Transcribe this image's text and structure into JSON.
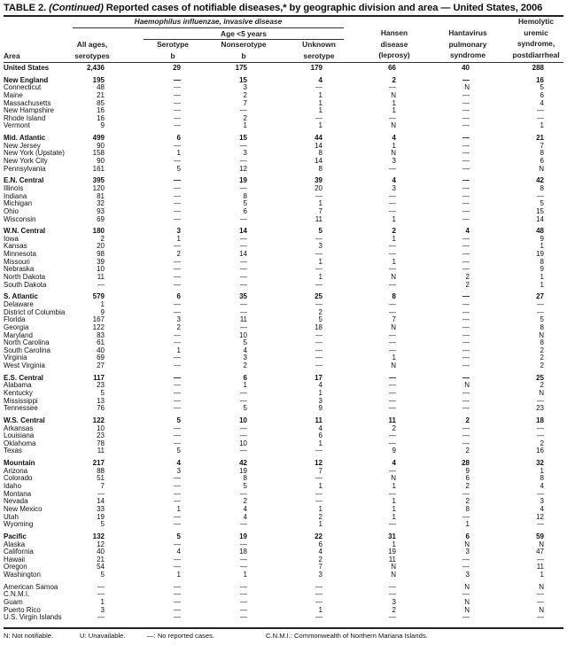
{
  "title": {
    "prefix": "TABLE 2. ",
    "continued": "(Continued)",
    "text": " Reported cases of notifiable diseases,* by geographic division and area — United States, 2006"
  },
  "header": {
    "hi_group": "Haemophilus influenzae, invasive disease",
    "age_group": "Age <5 years",
    "area": "Area",
    "all_ages": [
      "All ages,",
      "serotypes"
    ],
    "serotype_b": [
      "Serotype",
      "b"
    ],
    "nonserotype_b": [
      "Nonserotype",
      "b"
    ],
    "unknown": [
      "Unknown",
      "serotype"
    ],
    "hansen": [
      "Hansen",
      "disease",
      "(leprosy)"
    ],
    "hantavirus": [
      "Hantavirus",
      "pulmonary",
      "syndrome"
    ],
    "hus": [
      "Hemolytic",
      "uremic",
      "syndrome,",
      "postdiarrheal"
    ]
  },
  "rows": [
    {
      "group": true,
      "cells": [
        "United States",
        "2,436",
        "29",
        "175",
        "179",
        "66",
        "40",
        "288"
      ]
    },
    {
      "group": true,
      "cells": [
        "New England",
        "195",
        "—",
        "15",
        "4",
        "2",
        "—",
        "16"
      ]
    },
    {
      "cells": [
        "Connecticut",
        "48",
        "—",
        "3",
        "—",
        "—",
        "N",
        "5"
      ]
    },
    {
      "cells": [
        "Maine",
        "21",
        "—",
        "2",
        "1",
        "N",
        "—",
        "6"
      ]
    },
    {
      "cells": [
        "Massachusetts",
        "85",
        "—",
        "7",
        "1",
        "1",
        "—",
        "4"
      ]
    },
    {
      "cells": [
        "New Hampshire",
        "16",
        "—",
        "—",
        "1",
        "1",
        "—",
        "—"
      ]
    },
    {
      "cells": [
        "Rhode Island",
        "16",
        "—",
        "2",
        "—",
        "—",
        "—",
        "—"
      ]
    },
    {
      "cells": [
        "Vermont",
        "9",
        "—",
        "1",
        "1",
        "N",
        "—",
        "1"
      ]
    },
    {
      "group": true,
      "cells": [
        "Mid. Atlantic",
        "499",
        "6",
        "15",
        "44",
        "4",
        "—",
        "21"
      ]
    },
    {
      "cells": [
        "New Jersey",
        "90",
        "—",
        "—",
        "14",
        "1",
        "—",
        "7"
      ]
    },
    {
      "cells": [
        "New York (Upstate)",
        "158",
        "1",
        "3",
        "8",
        "N",
        "—",
        "8"
      ]
    },
    {
      "cells": [
        "New York City",
        "90",
        "—",
        "—",
        "14",
        "3",
        "—",
        "6"
      ]
    },
    {
      "cells": [
        "Pennsylvania",
        "161",
        "5",
        "12",
        "8",
        "—",
        "—",
        "N"
      ]
    },
    {
      "group": true,
      "cells": [
        "E.N. Central",
        "395",
        "—",
        "19",
        "39",
        "4",
        "—",
        "42"
      ]
    },
    {
      "cells": [
        "Illinois",
        "120",
        "—",
        "—",
        "20",
        "3",
        "—",
        "8"
      ]
    },
    {
      "cells": [
        "Indiana",
        "81",
        "—",
        "8",
        "—",
        "—",
        "—",
        "—"
      ]
    },
    {
      "cells": [
        "Michigan",
        "32",
        "—",
        "5",
        "1",
        "—",
        "—",
        "5"
      ]
    },
    {
      "cells": [
        "Ohio",
        "93",
        "—",
        "6",
        "7",
        "—",
        "—",
        "15"
      ]
    },
    {
      "cells": [
        "Wisconsin",
        "69",
        "—",
        "—",
        "11",
        "1",
        "—",
        "14"
      ]
    },
    {
      "group": true,
      "cells": [
        "W.N. Central",
        "180",
        "3",
        "14",
        "5",
        "2",
        "4",
        "48"
      ]
    },
    {
      "cells": [
        "Iowa",
        "2",
        "1",
        "—",
        "—",
        "1",
        "—",
        "9"
      ]
    },
    {
      "cells": [
        "Kansas",
        "20",
        "—",
        "—",
        "3",
        "—",
        "—",
        "1"
      ]
    },
    {
      "cells": [
        "Minnesota",
        "98",
        "2",
        "14",
        "—",
        "—",
        "—",
        "19"
      ]
    },
    {
      "cells": [
        "Missouri",
        "39",
        "—",
        "—",
        "1",
        "1",
        "—",
        "8"
      ]
    },
    {
      "cells": [
        "Nebraska",
        "10",
        "—",
        "—",
        "—",
        "—",
        "—",
        "9"
      ]
    },
    {
      "cells": [
        "North Dakota",
        "11",
        "—",
        "—",
        "1",
        "N",
        "2",
        "1"
      ]
    },
    {
      "cells": [
        "South Dakota",
        "—",
        "—",
        "—",
        "—",
        "—",
        "2",
        "1"
      ]
    },
    {
      "group": true,
      "cells": [
        "S. Atlantic",
        "579",
        "6",
        "35",
        "25",
        "8",
        "—",
        "27"
      ]
    },
    {
      "cells": [
        "Delaware",
        "1",
        "—",
        "—",
        "—",
        "—",
        "—",
        "—"
      ]
    },
    {
      "cells": [
        "District of Columbia",
        "9",
        "—",
        "—",
        "2",
        "—",
        "—",
        "—"
      ]
    },
    {
      "cells": [
        "Florida",
        "167",
        "3",
        "11",
        "5",
        "7",
        "—",
        "5"
      ]
    },
    {
      "cells": [
        "Georgia",
        "122",
        "2",
        "—",
        "18",
        "N",
        "—",
        "8"
      ]
    },
    {
      "cells": [
        "Maryland",
        "83",
        "—",
        "10",
        "—",
        "—",
        "—",
        "N"
      ]
    },
    {
      "cells": [
        "North Carolina",
        "61",
        "—",
        "5",
        "—",
        "—",
        "—",
        "8"
      ]
    },
    {
      "cells": [
        "South Carolina",
        "40",
        "1",
        "4",
        "—",
        "—",
        "—",
        "2"
      ]
    },
    {
      "cells": [
        "Virginia",
        "69",
        "—",
        "3",
        "—",
        "1",
        "—",
        "2"
      ]
    },
    {
      "cells": [
        "West Virginia",
        "27",
        "—",
        "2",
        "—",
        "N",
        "—",
        "2"
      ]
    },
    {
      "group": true,
      "cells": [
        "E.S. Central",
        "117",
        "—",
        "6",
        "17",
        "—",
        "—",
        "25"
      ]
    },
    {
      "cells": [
        "Alabama",
        "23",
        "—",
        "1",
        "4",
        "—",
        "N",
        "2"
      ]
    },
    {
      "cells": [
        "Kentucky",
        "5",
        "—",
        "—",
        "1",
        "—",
        "—",
        "N"
      ]
    },
    {
      "cells": [
        "Mississippi",
        "13",
        "—",
        "—",
        "3",
        "—",
        "—",
        "—"
      ]
    },
    {
      "cells": [
        "Tennessee",
        "76",
        "—",
        "5",
        "9",
        "—",
        "—",
        "23"
      ]
    },
    {
      "group": true,
      "cells": [
        "W.S. Central",
        "122",
        "5",
        "10",
        "11",
        "11",
        "2",
        "18"
      ]
    },
    {
      "cells": [
        "Arkansas",
        "10",
        "—",
        "—",
        "4",
        "2",
        "—",
        "—"
      ]
    },
    {
      "cells": [
        "Louisiana",
        "23",
        "—",
        "—",
        "6",
        "—",
        "—",
        "—"
      ]
    },
    {
      "cells": [
        "Oklahoma",
        "78",
        "—",
        "10",
        "1",
        "—",
        "—",
        "2"
      ]
    },
    {
      "cells": [
        "Texas",
        "11",
        "5",
        "—",
        "—",
        "9",
        "2",
        "16"
      ]
    },
    {
      "group": true,
      "cells": [
        "Mountain",
        "217",
        "4",
        "42",
        "12",
        "4",
        "28",
        "32"
      ]
    },
    {
      "cells": [
        "Arizona",
        "88",
        "3",
        "19",
        "7",
        "—",
        "9",
        "1"
      ]
    },
    {
      "cells": [
        "Colorado",
        "51",
        "—",
        "8",
        "—",
        "N",
        "6",
        "8"
      ]
    },
    {
      "cells": [
        "Idaho",
        "7",
        "—",
        "5",
        "1",
        "1",
        "2",
        "4"
      ]
    },
    {
      "cells": [
        "Montana",
        "—",
        "—",
        "—",
        "—",
        "—",
        "—",
        "—"
      ]
    },
    {
      "cells": [
        "Nevada",
        "14",
        "—",
        "2",
        "—",
        "1",
        "2",
        "3"
      ]
    },
    {
      "cells": [
        "New Mexico",
        "33",
        "1",
        "4",
        "1",
        "1",
        "8",
        "4"
      ]
    },
    {
      "cells": [
        "Utah",
        "19",
        "—",
        "4",
        "2",
        "1",
        "—",
        "12"
      ]
    },
    {
      "cells": [
        "Wyoming",
        "5",
        "—",
        "—",
        "1",
        "—",
        "1",
        "—"
      ]
    },
    {
      "group": true,
      "cells": [
        "Pacific",
        "132",
        "5",
        "19",
        "22",
        "31",
        "6",
        "59"
      ]
    },
    {
      "cells": [
        "Alaska",
        "12",
        "—",
        "—",
        "6",
        "1",
        "N",
        "N"
      ]
    },
    {
      "cells": [
        "California",
        "40",
        "4",
        "18",
        "4",
        "19",
        "3",
        "47"
      ]
    },
    {
      "cells": [
        "Hawaii",
        "21",
        "—",
        "—",
        "2",
        "11",
        "—",
        "—"
      ]
    },
    {
      "cells": [
        "Oregon",
        "54",
        "—",
        "—",
        "7",
        "N",
        "—",
        "11"
      ]
    },
    {
      "cells": [
        "Washington",
        "5",
        "1",
        "1",
        "3",
        "N",
        "3",
        "1"
      ]
    },
    {
      "group": "plain",
      "cells": [
        "American Samoa",
        "—",
        "—",
        "—",
        "—",
        "—",
        "N",
        "N"
      ]
    },
    {
      "cells": [
        "C.N.M.I.",
        "—",
        "—",
        "—",
        "—",
        "—",
        "—",
        "—"
      ]
    },
    {
      "cells": [
        "Guam",
        "1",
        "—",
        "—",
        "—",
        "3",
        "N",
        "—"
      ]
    },
    {
      "cells": [
        "Puerto Rico",
        "3",
        "—",
        "—",
        "1",
        "2",
        "N",
        "N"
      ]
    },
    {
      "cells": [
        "U.S. Virgin Islands",
        "—",
        "—",
        "—",
        "—",
        "—",
        "—",
        "—"
      ]
    }
  ],
  "footer": {
    "n": "N: Not notifiable.",
    "u": "U: Unavailable.",
    "dash": "—: No reported cases.",
    "cnmi": "C.N.M.I.: Commonwealth of Northern Mariana Islands."
  }
}
